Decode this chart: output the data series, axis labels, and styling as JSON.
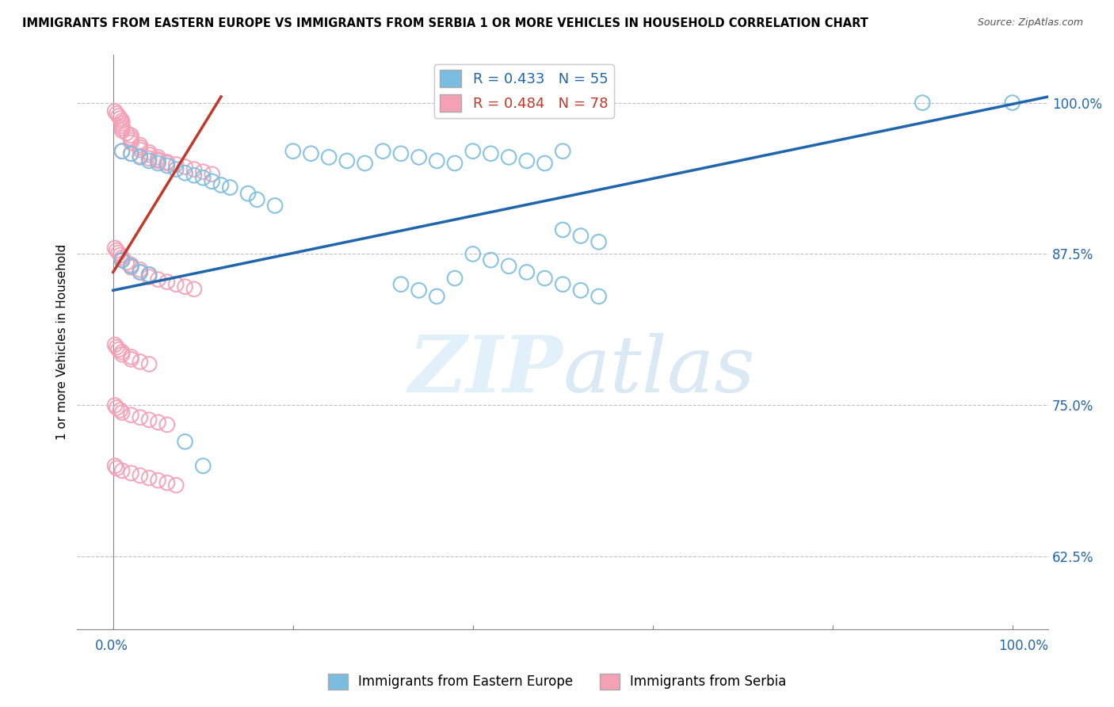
{
  "title": "IMMIGRANTS FROM EASTERN EUROPE VS IMMIGRANTS FROM SERBIA 1 OR MORE VEHICLES IN HOUSEHOLD CORRELATION CHART",
  "source": "Source: ZipAtlas.com",
  "ylabel": "1 or more Vehicles in Household",
  "ytick_labels": [
    "100.0%",
    "87.5%",
    "75.0%",
    "62.5%"
  ],
  "ytick_values": [
    1.0,
    0.875,
    0.75,
    0.625
  ],
  "ylim": [
    0.565,
    1.04
  ],
  "xlim": [
    -0.004,
    0.104
  ],
  "legend_label_blue": "R = 0.433   N = 55",
  "legend_label_pink": "R = 0.484   N = 78",
  "legend_bottom_blue": "Immigrants from Eastern Europe",
  "legend_bottom_pink": "Immigrants from Serbia",
  "color_blue": "#7bbde0",
  "color_pink": "#f4a0b5",
  "color_line_blue": "#2166ac",
  "color_line_pink": "#c0392b",
  "watermark_zip": "ZIP",
  "watermark_atlas": "atlas",
  "title_fontsize": 11,
  "source_fontsize": 9,
  "blue_scatter_x": [
    0.001,
    0.001,
    0.002,
    0.002,
    0.003,
    0.003,
    0.004,
    0.004,
    0.005,
    0.006,
    0.007,
    0.008,
    0.009,
    0.01,
    0.011,
    0.012,
    0.013,
    0.015,
    0.016,
    0.018,
    0.02,
    0.022,
    0.024,
    0.026,
    0.028,
    0.03,
    0.032,
    0.034,
    0.036,
    0.038,
    0.04,
    0.042,
    0.044,
    0.046,
    0.048,
    0.05,
    0.05,
    0.052,
    0.054,
    0.032,
    0.034,
    0.036,
    0.038,
    0.04,
    0.042,
    0.044,
    0.046,
    0.048,
    0.05,
    0.052,
    0.054,
    0.09,
    0.1,
    0.008,
    0.01
  ],
  "blue_scatter_y": [
    0.96,
    0.87,
    0.958,
    0.865,
    0.955,
    0.86,
    0.952,
    0.858,
    0.95,
    0.948,
    0.945,
    0.942,
    0.94,
    0.938,
    0.935,
    0.932,
    0.93,
    0.925,
    0.92,
    0.915,
    0.96,
    0.958,
    0.955,
    0.952,
    0.95,
    0.96,
    0.958,
    0.955,
    0.952,
    0.95,
    0.96,
    0.958,
    0.955,
    0.952,
    0.95,
    0.96,
    0.895,
    0.89,
    0.885,
    0.85,
    0.845,
    0.84,
    0.855,
    0.875,
    0.87,
    0.865,
    0.86,
    0.855,
    0.85,
    0.845,
    0.84,
    1.0,
    1.0,
    0.72,
    0.7
  ],
  "pink_scatter_x": [
    0.0002,
    0.0004,
    0.0006,
    0.0008,
    0.001,
    0.001,
    0.001,
    0.001,
    0.001,
    0.0015,
    0.002,
    0.002,
    0.002,
    0.002,
    0.003,
    0.003,
    0.003,
    0.004,
    0.004,
    0.005,
    0.005,
    0.006,
    0.007,
    0.008,
    0.009,
    0.01,
    0.011,
    0.0002,
    0.0004,
    0.0006,
    0.0008,
    0.001,
    0.001,
    0.0015,
    0.002,
    0.002,
    0.003,
    0.003,
    0.004,
    0.004,
    0.005,
    0.006,
    0.007,
    0.008,
    0.009,
    0.0002,
    0.0004,
    0.0006,
    0.001,
    0.001,
    0.002,
    0.002,
    0.003,
    0.004,
    0.0002,
    0.0004,
    0.0008,
    0.001,
    0.002,
    0.003,
    0.004,
    0.005,
    0.006,
    0.0002,
    0.0004,
    0.001,
    0.002,
    0.003,
    0.004,
    0.005,
    0.006,
    0.007,
    0.001,
    0.002,
    0.003,
    0.004,
    0.005,
    0.006
  ],
  "pink_scatter_y": [
    0.993,
    0.991,
    0.989,
    0.987,
    0.985,
    0.983,
    0.981,
    0.979,
    0.977,
    0.975,
    0.973,
    0.971,
    0.969,
    0.967,
    0.965,
    0.963,
    0.961,
    0.959,
    0.957,
    0.955,
    0.953,
    0.951,
    0.949,
    0.947,
    0.945,
    0.943,
    0.941,
    0.88,
    0.878,
    0.876,
    0.874,
    0.872,
    0.87,
    0.868,
    0.866,
    0.864,
    0.862,
    0.86,
    0.858,
    0.856,
    0.854,
    0.852,
    0.85,
    0.848,
    0.846,
    0.8,
    0.798,
    0.796,
    0.794,
    0.792,
    0.79,
    0.788,
    0.786,
    0.784,
    0.75,
    0.748,
    0.746,
    0.744,
    0.742,
    0.74,
    0.738,
    0.736,
    0.734,
    0.7,
    0.698,
    0.696,
    0.694,
    0.692,
    0.69,
    0.688,
    0.686,
    0.684,
    0.96,
    0.958,
    0.956,
    0.954,
    0.952,
    0.95
  ],
  "blue_line_x0": 0.0,
  "blue_line_x1": 0.104,
  "blue_line_y0": 0.845,
  "blue_line_y1": 1.005,
  "pink_line_x0": 0.0,
  "pink_line_x1": 0.012,
  "pink_line_y0": 0.86,
  "pink_line_y1": 1.005
}
